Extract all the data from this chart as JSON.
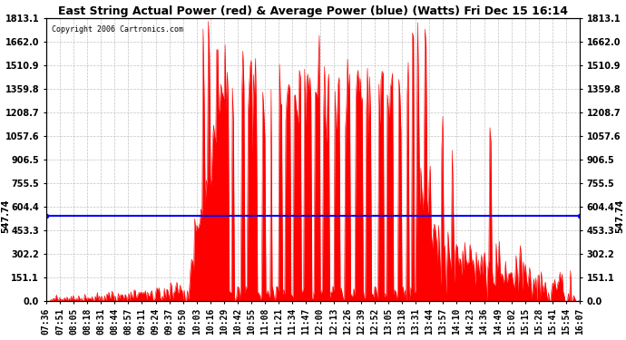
{
  "title": "East String Actual Power (red) & Average Power (blue) (Watts) Fri Dec 15 16:14",
  "copyright": "Copyright 2006 Cartronics.com",
  "avg_power": 547.74,
  "avg_label": "547.74",
  "ymin": 0.0,
  "ymax": 1813.1,
  "yticks": [
    0.0,
    151.1,
    302.2,
    453.3,
    604.4,
    755.5,
    906.5,
    1057.6,
    1208.7,
    1359.8,
    1510.9,
    1662.0,
    1813.1
  ],
  "background_color": "#ffffff",
  "plot_bg_color": "#ffffff",
  "grid_color": "#aaaaaa",
  "red_color": "#ff0000",
  "blue_color": "#0000ff",
  "time_labels": [
    "07:36",
    "07:51",
    "08:05",
    "08:18",
    "08:31",
    "08:44",
    "08:57",
    "09:11",
    "09:24",
    "09:37",
    "09:50",
    "10:03",
    "10:16",
    "10:29",
    "10:42",
    "10:55",
    "11:08",
    "11:21",
    "11:34",
    "11:47",
    "12:00",
    "12:13",
    "12:26",
    "12:39",
    "12:52",
    "13:05",
    "13:18",
    "13:31",
    "13:44",
    "13:57",
    "14:10",
    "14:23",
    "14:36",
    "14:49",
    "15:02",
    "15:15",
    "15:28",
    "15:41",
    "15:54",
    "16:07"
  ]
}
